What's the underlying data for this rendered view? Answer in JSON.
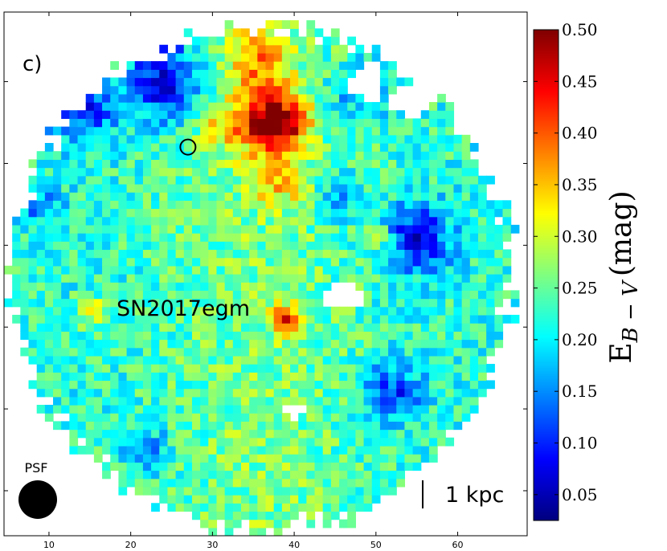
{
  "chart_data": {
    "type": "heatmap",
    "panel_label": "c)",
    "x_ticks": [
      10,
      20,
      30,
      40,
      50,
      60
    ],
    "xlim": [
      4.5,
      68.5
    ],
    "ylim": [
      4.5,
      68.5
    ],
    "colormap": "jet",
    "colorbar": {
      "label_main": "E",
      "label_sub": "B − V",
      "label_unit": "(mag)",
      "vmin": 0.025,
      "vmax": 0.5,
      "ticks": [
        "0.05",
        "0.10",
        "0.15",
        "0.20",
        "0.25",
        "0.30",
        "0.35",
        "0.40",
        "0.45",
        "0.50"
      ]
    },
    "map_description": {
      "mask": "roughly circular field of view centred near (36, 36), radius about 31 pixels; holes (masked) near (46, 34), (49, 60), (54, 58)",
      "background_value_mag": 0.22,
      "features": [
        {
          "x": 37,
          "y": 55,
          "value_mag": 0.45,
          "note": "central red knot"
        },
        {
          "x": 31,
          "y": 55,
          "value_mag": 0.3
        },
        {
          "x": 55,
          "y": 41,
          "value_mag": 0.05,
          "note": "low extinction region"
        },
        {
          "x": 24,
          "y": 60,
          "value_mag": 0.05,
          "note": "low extinction near SN"
        }
      ]
    },
    "annotations": {
      "sn_marker_x": 27,
      "sn_marker_y": 52,
      "sn_label": "SN2017egm",
      "psf_label": "PSF",
      "psf_x": 9,
      "psf_y": 10,
      "scale_label": "1 kpc"
    }
  }
}
